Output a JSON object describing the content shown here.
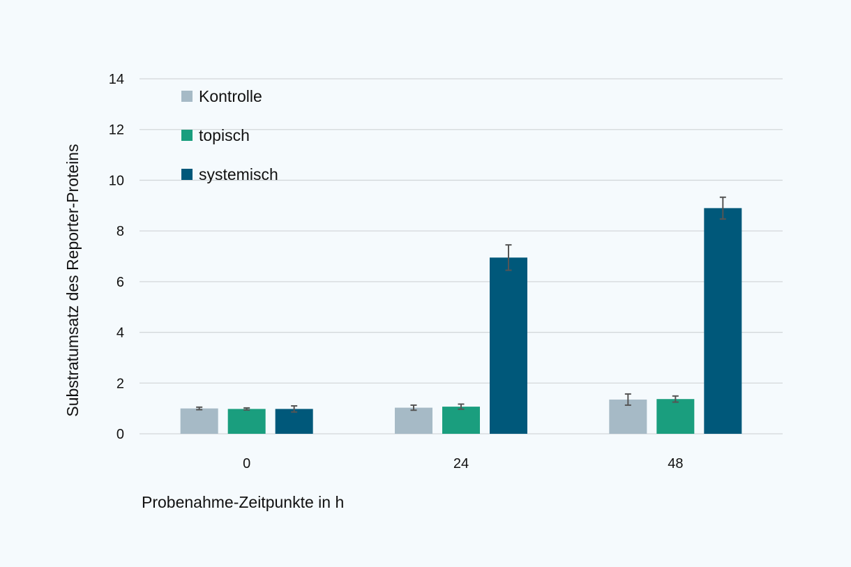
{
  "chart_data": {
    "type": "bar",
    "title": "",
    "xlabel": "Probenahme-Zeitpunkte in h",
    "ylabel": "Substratumsatz des Reporter-Proteins",
    "categories": [
      "0",
      "24",
      "48"
    ],
    "ylim": [
      0,
      14
    ],
    "yticks": [
      0,
      2,
      4,
      6,
      8,
      10,
      12,
      14
    ],
    "grid": true,
    "legend_position": "top-left",
    "series": [
      {
        "name": "Kontrolle",
        "color": "#a6bac6",
        "values": [
          1.0,
          1.03,
          1.35
        ],
        "errors": [
          0.05,
          0.1,
          0.22
        ]
      },
      {
        "name": "topisch",
        "color": "#1a9e7e",
        "values": [
          0.98,
          1.07,
          1.37
        ],
        "errors": [
          0.04,
          0.1,
          0.12
        ]
      },
      {
        "name": "systemisch",
        "color": "#00587a",
        "values": [
          0.98,
          6.95,
          8.9
        ],
        "errors": [
          0.12,
          0.5,
          0.43
        ]
      }
    ]
  }
}
